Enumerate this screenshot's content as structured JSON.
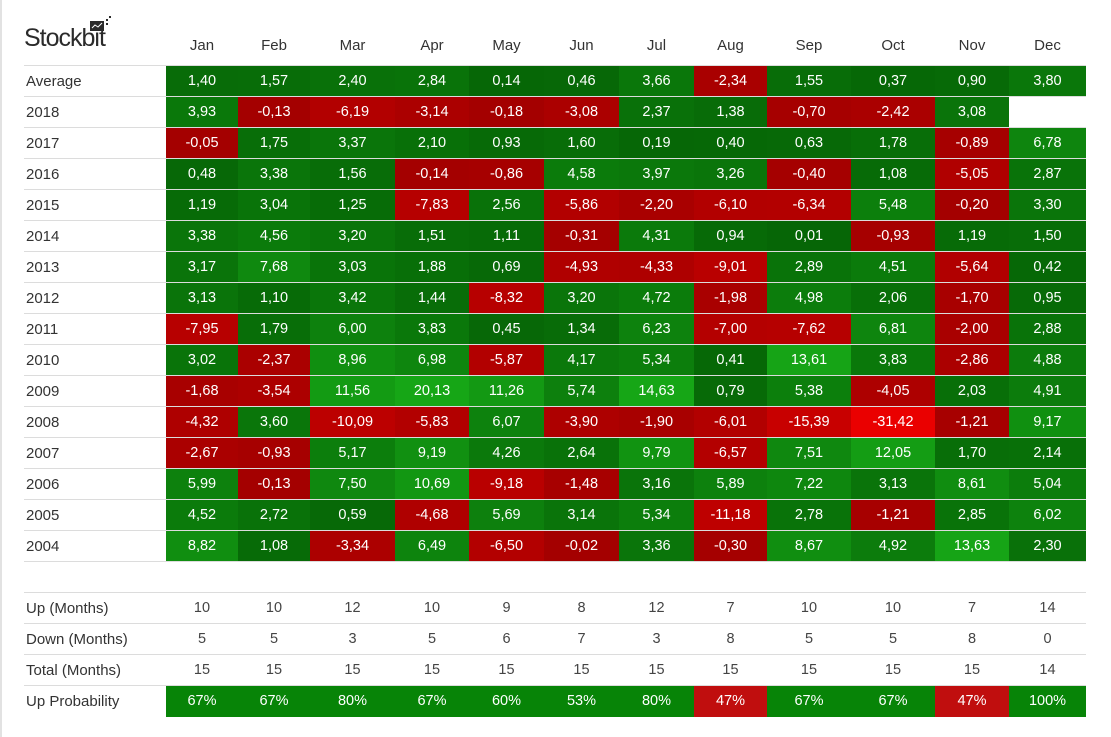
{
  "logo": {
    "text": "Stockbit"
  },
  "chart_data": {
    "type": "heatmap",
    "columns": [
      "Jan",
      "Feb",
      "Mar",
      "Apr",
      "May",
      "Jun",
      "Jul",
      "Aug",
      "Sep",
      "Oct",
      "Nov",
      "Dec"
    ],
    "rows": [
      {
        "label": "Average",
        "values": [
          "1,40",
          "1,57",
          "2,40",
          "2,84",
          "0,14",
          "0,46",
          "3,66",
          "-2,34",
          "1,55",
          "0,37",
          "0,90",
          "3,80"
        ]
      },
      {
        "label": "2018",
        "values": [
          "3,93",
          "-0,13",
          "-6,19",
          "-3,14",
          "-0,18",
          "-3,08",
          "2,37",
          "1,38",
          "-0,70",
          "-2,42",
          "3,08",
          ""
        ]
      },
      {
        "label": "2017",
        "values": [
          "-0,05",
          "1,75",
          "3,37",
          "2,10",
          "0,93",
          "1,60",
          "0,19",
          "0,40",
          "0,63",
          "1,78",
          "-0,89",
          "6,78"
        ]
      },
      {
        "label": "2016",
        "values": [
          "0,48",
          "3,38",
          "1,56",
          "-0,14",
          "-0,86",
          "4,58",
          "3,97",
          "3,26",
          "-0,40",
          "1,08",
          "-5,05",
          "2,87"
        ]
      },
      {
        "label": "2015",
        "values": [
          "1,19",
          "3,04",
          "1,25",
          "-7,83",
          "2,56",
          "-5,86",
          "-2,20",
          "-6,10",
          "-6,34",
          "5,48",
          "-0,20",
          "3,30"
        ]
      },
      {
        "label": "2014",
        "values": [
          "3,38",
          "4,56",
          "3,20",
          "1,51",
          "1,11",
          "-0,31",
          "4,31",
          "0,94",
          "0,01",
          "-0,93",
          "1,19",
          "1,50"
        ]
      },
      {
        "label": "2013",
        "values": [
          "3,17",
          "7,68",
          "3,03",
          "1,88",
          "0,69",
          "-4,93",
          "-4,33",
          "-9,01",
          "2,89",
          "4,51",
          "-5,64",
          "0,42"
        ]
      },
      {
        "label": "2012",
        "values": [
          "3,13",
          "1,10",
          "3,42",
          "1,44",
          "-8,32",
          "3,20",
          "4,72",
          "-1,98",
          "4,98",
          "2,06",
          "-1,70",
          "0,95"
        ]
      },
      {
        "label": "2011",
        "values": [
          "-7,95",
          "1,79",
          "6,00",
          "3,83",
          "0,45",
          "1,34",
          "6,23",
          "-7,00",
          "-7,62",
          "6,81",
          "-2,00",
          "2,88"
        ]
      },
      {
        "label": "2010",
        "values": [
          "3,02",
          "-2,37",
          "8,96",
          "6,98",
          "-5,87",
          "4,17",
          "5,34",
          "0,41",
          "13,61",
          "3,83",
          "-2,86",
          "4,88"
        ]
      },
      {
        "label": "2009",
        "values": [
          "-1,68",
          "-3,54",
          "11,56",
          "20,13",
          "11,26",
          "5,74",
          "14,63",
          "0,79",
          "5,38",
          "-4,05",
          "2,03",
          "4,91"
        ]
      },
      {
        "label": "2008",
        "values": [
          "-4,32",
          "3,60",
          "-10,09",
          "-5,83",
          "6,07",
          "-3,90",
          "-1,90",
          "-6,01",
          "-15,39",
          "-31,42",
          "-1,21",
          "9,17"
        ]
      },
      {
        "label": "2007",
        "values": [
          "-2,67",
          "-0,93",
          "5,17",
          "9,19",
          "4,26",
          "2,64",
          "9,79",
          "-6,57",
          "7,51",
          "12,05",
          "1,70",
          "2,14"
        ]
      },
      {
        "label": "2006",
        "values": [
          "5,99",
          "-0,13",
          "7,50",
          "10,69",
          "-9,18",
          "-1,48",
          "3,16",
          "5,89",
          "7,22",
          "3,13",
          "8,61",
          "5,04"
        ]
      },
      {
        "label": "2005",
        "values": [
          "4,52",
          "2,72",
          "0,59",
          "-4,68",
          "5,69",
          "3,14",
          "5,34",
          "-11,18",
          "2,78",
          "-1,21",
          "2,85",
          "6,02"
        ]
      },
      {
        "label": "2004",
        "values": [
          "8,82",
          "1,08",
          "-3,34",
          "6,49",
          "-6,50",
          "-0,02",
          "3,36",
          "-0,30",
          "8,67",
          "4,92",
          "13,63",
          "2,30"
        ]
      }
    ],
    "stats": [
      {
        "label": "Up (Months)",
        "values": [
          "10",
          "10",
          "12",
          "10",
          "9",
          "8",
          "12",
          "7",
          "10",
          "10",
          "7",
          "14"
        ]
      },
      {
        "label": "Down (Months)",
        "values": [
          "5",
          "5",
          "3",
          "5",
          "6",
          "7",
          "3",
          "8",
          "5",
          "5",
          "8",
          "0"
        ]
      },
      {
        "label": "Total (Months)",
        "values": [
          "15",
          "15",
          "15",
          "15",
          "15",
          "15",
          "15",
          "15",
          "15",
          "15",
          "15",
          "14"
        ]
      }
    ],
    "probability": {
      "label": "Up Probability",
      "values": [
        "67%",
        "67%",
        "80%",
        "67%",
        "60%",
        "53%",
        "80%",
        "47%",
        "67%",
        "67%",
        "47%",
        "100%"
      ]
    },
    "colors": {
      "positive": "#0a8a0a",
      "negative": "#c0120e"
    }
  }
}
